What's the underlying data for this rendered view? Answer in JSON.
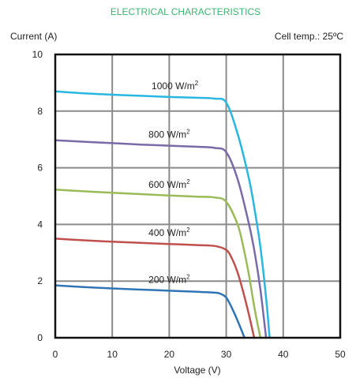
{
  "chart_data": {
    "type": "line",
    "title": "ELECTRICAL CHARACTERISTICS",
    "note": "Cell temp.: 25ºC",
    "xlabel": "Voltage (V)",
    "ylabel": "Current (A)",
    "xlim": [
      0,
      50
    ],
    "ylim": [
      0,
      10
    ],
    "xticks": [
      "0",
      "10",
      "20",
      "30",
      "40",
      "50"
    ],
    "yticks": [
      "0",
      "2",
      "4",
      "6",
      "8",
      "10"
    ],
    "grid": true,
    "series": [
      {
        "name": "1000 W/m2",
        "label": "1000 W/m",
        "sup": "2",
        "color": "#29b6e0",
        "x": [
          0,
          5,
          10,
          15,
          20,
          25,
          28,
          30,
          32,
          34,
          35,
          36,
          37,
          37.6
        ],
        "y": [
          8.7,
          8.63,
          8.58,
          8.54,
          8.5,
          8.47,
          8.44,
          8.3,
          7.2,
          5.6,
          4.5,
          3.2,
          1.4,
          0
        ]
      },
      {
        "name": "800 W/m2",
        "label": "800 W/m",
        "sup": "2",
        "color": "#7b6aa8",
        "x": [
          0,
          5,
          10,
          15,
          20,
          25,
          28,
          30,
          32,
          34,
          35,
          36,
          37
        ],
        "y": [
          6.97,
          6.92,
          6.87,
          6.82,
          6.78,
          6.74,
          6.7,
          6.55,
          5.6,
          4.0,
          3.0,
          1.7,
          0
        ]
      },
      {
        "name": "600 W/m2",
        "label": "600 W/m",
        "sup": "2",
        "color": "#9bbb59",
        "x": [
          0,
          5,
          10,
          15,
          20,
          25,
          28,
          30,
          32,
          33,
          34,
          35,
          36
        ],
        "y": [
          5.23,
          5.17,
          5.12,
          5.07,
          5.02,
          4.98,
          4.95,
          4.8,
          4.0,
          3.2,
          2.2,
          1.0,
          0
        ]
      },
      {
        "name": "400 W/m2",
        "label": "400 W/m",
        "sup": "2",
        "color": "#c0504d",
        "x": [
          0,
          5,
          10,
          15,
          20,
          25,
          28,
          30,
          31,
          32,
          33,
          34,
          34.9
        ],
        "y": [
          3.5,
          3.44,
          3.39,
          3.35,
          3.31,
          3.27,
          3.24,
          3.1,
          2.8,
          2.3,
          1.6,
          0.8,
          0
        ]
      },
      {
        "name": "200 W/m2",
        "label": "200 W/m",
        "sup": "2",
        "color": "#2f75b5",
        "x": [
          0,
          5,
          10,
          15,
          20,
          25,
          28,
          29,
          30,
          31,
          32,
          33.2
        ],
        "y": [
          1.85,
          1.79,
          1.74,
          1.7,
          1.66,
          1.62,
          1.59,
          1.55,
          1.42,
          1.05,
          0.6,
          0
        ]
      }
    ]
  }
}
